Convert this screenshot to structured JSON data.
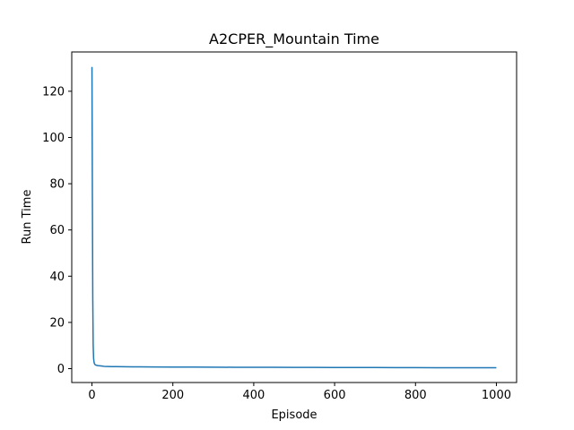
{
  "chart_data": {
    "type": "line",
    "title": "A2CPER_Mountain Time",
    "xlabel": "Episode",
    "ylabel": "Run Time",
    "xlim": [
      -50,
      1050
    ],
    "ylim": [
      -6,
      137
    ],
    "xticks": [
      0,
      200,
      400,
      600,
      800,
      1000
    ],
    "yticks": [
      0,
      20,
      40,
      60,
      80,
      100,
      120
    ],
    "grid": false,
    "series": [
      {
        "color": "#1f77b4",
        "x": [
          0,
          1,
          2,
          3,
          4,
          5,
          6,
          7,
          8,
          10,
          12,
          15,
          20,
          25,
          30,
          40,
          50,
          60,
          80,
          100,
          120,
          150,
          200,
          250,
          300,
          350,
          400,
          450,
          500,
          550,
          600,
          650,
          700,
          750,
          800,
          850,
          900,
          950,
          1000
        ],
        "y": [
          130.5,
          75,
          30,
          10,
          4.5,
          3,
          2.2,
          1.9,
          1.7,
          1.5,
          1.4,
          1.3,
          1.2,
          1.1,
          1.0,
          0.95,
          0.9,
          0.9,
          0.85,
          0.8,
          0.8,
          0.75,
          0.7,
          0.7,
          0.65,
          0.6,
          0.6,
          0.6,
          0.55,
          0.55,
          0.5,
          0.5,
          0.5,
          0.45,
          0.45,
          0.4,
          0.4,
          0.4,
          0.4
        ]
      }
    ]
  }
}
